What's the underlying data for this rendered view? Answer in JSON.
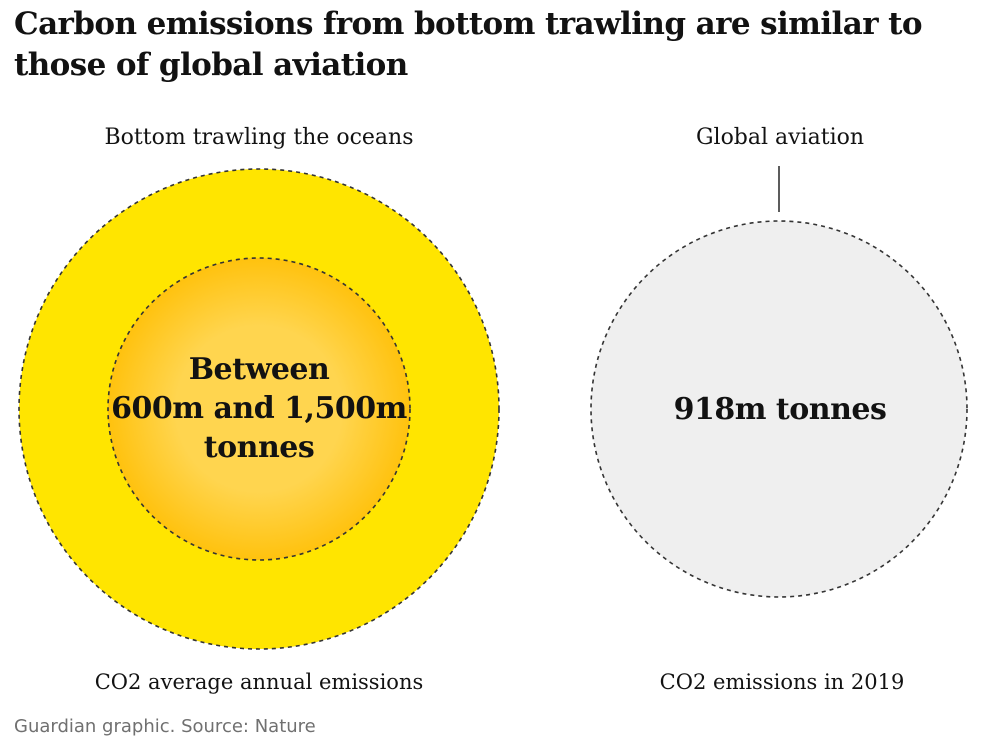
{
  "chart_data": {
    "type": "proportional-circles",
    "title": "Carbon emissions from bottom trawling are similar to those of global aviation",
    "series": [
      {
        "name": "Bottom trawling the oceans",
        "value_range_m_tonnes": [
          600,
          1500
        ],
        "value_label_lines": [
          "Between",
          "600m and 1,500m",
          "tonnes"
        ],
        "caption": "CO2 average annual emissions"
      },
      {
        "name": "Global aviation",
        "value_m_tonnes": 918,
        "value_label_lines": [
          "918m tonnes"
        ],
        "caption": "CO2 emissions in 2019"
      }
    ],
    "source": "Guardian graphic. Source: Nature"
  },
  "colors": {
    "outer_yellow": "#ffe500",
    "inner_center": "#ffd54f",
    "inner_edge": "#ffc20e",
    "aviation_fill": "#efefef",
    "dash_stroke": "#333333"
  }
}
